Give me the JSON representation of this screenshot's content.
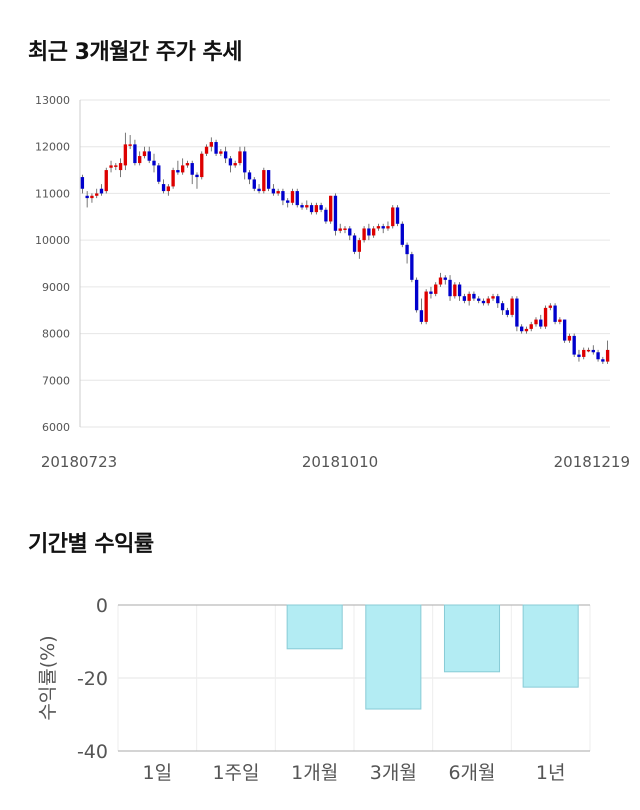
{
  "sections": {
    "price_title": "최근 3개월간 주가 추세",
    "return_title": "기간별 수익률"
  },
  "colors": {
    "up": "#dd0000",
    "down": "#0000cc",
    "bar_fill": "#b3ecf3",
    "bar_stroke": "#88cbd6",
    "grid": "#e6e6e6"
  },
  "chart_data": [
    {
      "type": "candlestick",
      "title": "최근 3개월간 주가 추세",
      "x_tick_labels": [
        "20180723",
        "20181010",
        "20181219"
      ],
      "ylim": [
        6000,
        13000
      ],
      "y_ticks": [
        6000,
        7000,
        8000,
        9000,
        10000,
        11000,
        12000,
        13000
      ],
      "grid": "horizontal",
      "candles": [
        [
          11350,
          11100,
          11000,
          11400
        ],
        [
          10950,
          10900,
          10700,
          11050
        ],
        [
          10900,
          10950,
          10800,
          11000
        ],
        [
          10950,
          11000,
          10900,
          11100
        ],
        [
          11100,
          11000,
          10950,
          11200
        ],
        [
          11050,
          11500,
          11000,
          11550
        ],
        [
          11550,
          11600,
          11450,
          11700
        ],
        [
          11600,
          11600,
          11500,
          11650
        ],
        [
          11500,
          11650,
          11350,
          11750
        ],
        [
          11600,
          12050,
          11500,
          12300
        ],
        [
          12050,
          12050,
          11950,
          12250
        ],
        [
          12050,
          11650,
          11600,
          12150
        ],
        [
          11650,
          11800,
          11600,
          11900
        ],
        [
          11800,
          11900,
          11750,
          12000
        ],
        [
          11900,
          11700,
          11650,
          12000
        ],
        [
          11700,
          11600,
          11450,
          11850
        ],
        [
          11600,
          11250,
          11200,
          11650
        ],
        [
          11200,
          11050,
          11000,
          11300
        ],
        [
          11050,
          11150,
          10950,
          11200
        ],
        [
          11150,
          11500,
          11100,
          11550
        ],
        [
          11500,
          11450,
          11400,
          11700
        ],
        [
          11450,
          11600,
          11400,
          11750
        ],
        [
          11600,
          11650,
          11550,
          11700
        ],
        [
          11650,
          11400,
          11200,
          11700
        ],
        [
          11400,
          11350,
          11100,
          11450
        ],
        [
          11350,
          11850,
          11300,
          11900
        ],
        [
          11850,
          12000,
          11800,
          12050
        ],
        [
          12000,
          12100,
          11900,
          12200
        ],
        [
          12100,
          11850,
          11800,
          12150
        ],
        [
          11850,
          11900,
          11800,
          11950
        ],
        [
          11900,
          11750,
          11650,
          12000
        ],
        [
          11750,
          11600,
          11450,
          11800
        ],
        [
          11600,
          11650,
          11550,
          11700
        ],
        [
          11650,
          11900,
          11600,
          12000
        ],
        [
          11900,
          11450,
          11300,
          12000
        ],
        [
          11450,
          11300,
          11200,
          11500
        ],
        [
          11300,
          11100,
          11050,
          11350
        ],
        [
          11100,
          11050,
          11000,
          11200
        ],
        [
          11050,
          11500,
          11000,
          11550
        ],
        [
          11500,
          11100,
          11050,
          11500
        ],
        [
          11100,
          11000,
          10950,
          11200
        ],
        [
          11000,
          11050,
          10950,
          11100
        ],
        [
          11050,
          10850,
          10750,
          11100
        ],
        [
          10850,
          10800,
          10700,
          10900
        ],
        [
          10800,
          11050,
          10750,
          11100
        ],
        [
          11050,
          10750,
          10700,
          11100
        ],
        [
          10750,
          10700,
          10650,
          10800
        ],
        [
          10700,
          10750,
          10650,
          10850
        ],
        [
          10750,
          10600,
          10550,
          10800
        ],
        [
          10600,
          10750,
          10550,
          10800
        ],
        [
          10750,
          10650,
          10600,
          10800
        ],
        [
          10650,
          10400,
          10350,
          10700
        ],
        [
          10400,
          10950,
          10350,
          10950
        ],
        [
          10950,
          10200,
          10100,
          11000
        ],
        [
          10200,
          10250,
          10150,
          10350
        ],
        [
          10250,
          10250,
          10150,
          10300
        ],
        [
          10250,
          10100,
          10000,
          10300
        ],
        [
          10100,
          9750,
          9700,
          10150
        ],
        [
          9750,
          10000,
          9600,
          10050
        ],
        [
          10000,
          10250,
          9950,
          10300
        ],
        [
          10250,
          10100,
          10000,
          10350
        ],
        [
          10100,
          10250,
          10050,
          10300
        ],
        [
          10250,
          10300,
          10200,
          10350
        ],
        [
          10300,
          10250,
          10150,
          10350
        ],
        [
          10250,
          10300,
          10200,
          10400
        ],
        [
          10300,
          10700,
          10250,
          10750
        ],
        [
          10700,
          10350,
          10300,
          10750
        ],
        [
          10350,
          9900,
          9850,
          10400
        ],
        [
          9900,
          9700,
          9500,
          9950
        ],
        [
          9700,
          9150,
          9100,
          9750
        ],
        [
          9150,
          8500,
          8450,
          9200
        ],
        [
          8500,
          8250,
          8200,
          8750
        ],
        [
          8250,
          8900,
          8200,
          8950
        ],
        [
          8900,
          8850,
          8750,
          9000
        ],
        [
          8850,
          9050,
          8800,
          9100
        ],
        [
          9050,
          9200,
          9000,
          9300
        ],
        [
          9200,
          9150,
          9050,
          9250
        ],
        [
          9150,
          8800,
          8700,
          9250
        ],
        [
          8800,
          9050,
          8750,
          9100
        ],
        [
          9050,
          8800,
          8700,
          9100
        ],
        [
          8800,
          8700,
          8650,
          8850
        ],
        [
          8700,
          8850,
          8600,
          8900
        ],
        [
          8850,
          8750,
          8700,
          8900
        ],
        [
          8750,
          8700,
          8650,
          8800
        ],
        [
          8700,
          8650,
          8600,
          8750
        ],
        [
          8650,
          8750,
          8600,
          8800
        ],
        [
          8750,
          8800,
          8700,
          8850
        ],
        [
          8800,
          8650,
          8550,
          8850
        ],
        [
          8650,
          8500,
          8400,
          8700
        ],
        [
          8500,
          8400,
          8350,
          8550
        ],
        [
          8400,
          8750,
          8350,
          8800
        ],
        [
          8750,
          8150,
          8050,
          8800
        ],
        [
          8150,
          8050,
          8000,
          8200
        ],
        [
          8050,
          8100,
          8000,
          8150
        ],
        [
          8100,
          8200,
          8050,
          8250
        ],
        [
          8200,
          8300,
          8150,
          8350
        ],
        [
          8300,
          8150,
          8100,
          8400
        ],
        [
          8150,
          8550,
          8100,
          8600
        ],
        [
          8550,
          8600,
          8500,
          8650
        ],
        [
          8600,
          8250,
          8200,
          8650
        ],
        [
          8250,
          8300,
          8200,
          8350
        ],
        [
          8300,
          7850,
          7800,
          8300
        ],
        [
          7850,
          7950,
          7800,
          8000
        ],
        [
          7950,
          7550,
          7500,
          8000
        ],
        [
          7550,
          7500,
          7400,
          7650
        ],
        [
          7500,
          7650,
          7450,
          7700
        ],
        [
          7650,
          7650,
          7600,
          7700
        ],
        [
          7650,
          7600,
          7550,
          7750
        ],
        [
          7600,
          7450,
          7400,
          7650
        ],
        [
          7450,
          7400,
          7350,
          7500
        ],
        [
          7400,
          7650,
          7350,
          7850
        ]
      ]
    },
    {
      "type": "bar",
      "title": "기간별 수익률",
      "ylabel": "수익률(%)",
      "ylim": [
        -40,
        0
      ],
      "y_ticks": [
        0,
        -20,
        -40
      ],
      "categories": [
        "1일",
        "1주일",
        "1개월",
        "3개월",
        "6개월",
        "1년"
      ],
      "values": [
        0,
        0,
        -12,
        -28.5,
        -18.3,
        -22.5
      ]
    }
  ]
}
